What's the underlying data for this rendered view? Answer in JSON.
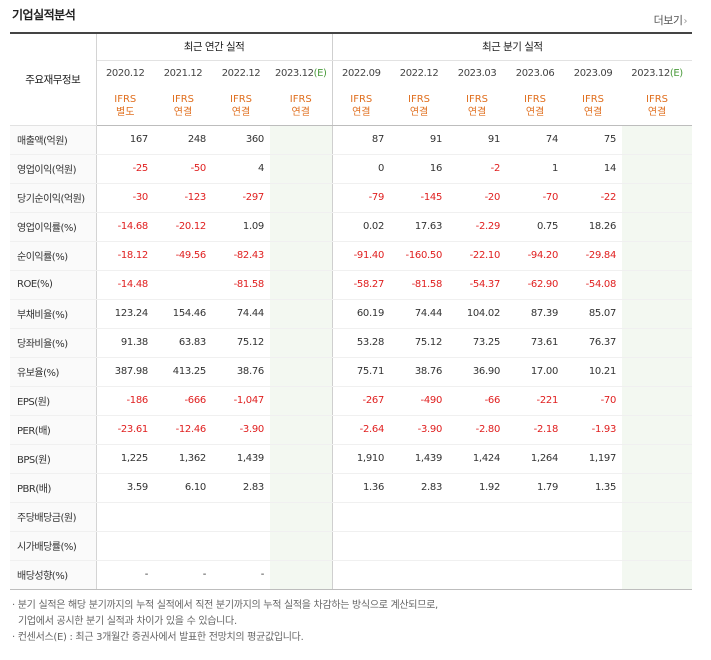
{
  "title": "기업실적분석",
  "more_label": "더보기",
  "header": {
    "row_header": "주요재무정보",
    "annual_group": "최근 연간 실적",
    "quarter_group": "최근 분기 실적",
    "periods": [
      {
        "label": "2020.12",
        "est": "",
        "std": "IFRS",
        "basis": "별도"
      },
      {
        "label": "2021.12",
        "est": "",
        "std": "IFRS",
        "basis": "연결"
      },
      {
        "label": "2022.12",
        "est": "",
        "std": "IFRS",
        "basis": "연결"
      },
      {
        "label": "2023.12",
        "est": "(E)",
        "std": "IFRS",
        "basis": "연결"
      },
      {
        "label": "2022.09",
        "est": "",
        "std": "IFRS",
        "basis": "연결"
      },
      {
        "label": "2022.12",
        "est": "",
        "std": "IFRS",
        "basis": "연결"
      },
      {
        "label": "2023.03",
        "est": "",
        "std": "IFRS",
        "basis": "연결"
      },
      {
        "label": "2023.06",
        "est": "",
        "std": "IFRS",
        "basis": "연결"
      },
      {
        "label": "2023.09",
        "est": "",
        "std": "IFRS",
        "basis": "연결"
      },
      {
        "label": "2023.12",
        "est": "(E)",
        "std": "IFRS",
        "basis": "연결"
      }
    ]
  },
  "rows": [
    {
      "label": "매출액(억원)",
      "values": [
        "167",
        "248",
        "360",
        "",
        "87",
        "91",
        "91",
        "74",
        "75",
        ""
      ]
    },
    {
      "label": "영업이익(억원)",
      "values": [
        "-25",
        "-50",
        "4",
        "",
        "0",
        "16",
        "-2",
        "1",
        "14",
        ""
      ]
    },
    {
      "label": "당기순이익(억원)",
      "values": [
        "-30",
        "-123",
        "-297",
        "",
        "-79",
        "-145",
        "-20",
        "-70",
        "-22",
        ""
      ]
    },
    {
      "label": "영업이익률(%)",
      "values": [
        "-14.68",
        "-20.12",
        "1.09",
        "",
        "0.02",
        "17.63",
        "-2.29",
        "0.75",
        "18.26",
        ""
      ]
    },
    {
      "label": "순이익률(%)",
      "values": [
        "-18.12",
        "-49.56",
        "-82.43",
        "",
        "-91.40",
        "-160.50",
        "-22.10",
        "-94.20",
        "-29.84",
        ""
      ]
    },
    {
      "label": "ROE(%)",
      "values": [
        "-14.48",
        "",
        "-81.58",
        "",
        "-58.27",
        "-81.58",
        "-54.37",
        "-62.90",
        "-54.08",
        ""
      ]
    },
    {
      "label": "부채비율(%)",
      "values": [
        "123.24",
        "154.46",
        "74.44",
        "",
        "60.19",
        "74.44",
        "104.02",
        "87.39",
        "85.07",
        ""
      ]
    },
    {
      "label": "당좌비율(%)",
      "values": [
        "91.38",
        "63.83",
        "75.12",
        "",
        "53.28",
        "75.12",
        "73.25",
        "73.61",
        "76.37",
        ""
      ]
    },
    {
      "label": "유보율(%)",
      "values": [
        "387.98",
        "413.25",
        "38.76",
        "",
        "75.71",
        "38.76",
        "36.90",
        "17.00",
        "10.21",
        ""
      ]
    },
    {
      "label": "EPS(원)",
      "values": [
        "-186",
        "-666",
        "-1,047",
        "",
        "-267",
        "-490",
        "-66",
        "-221",
        "-70",
        ""
      ]
    },
    {
      "label": "PER(배)",
      "values": [
        "-23.61",
        "-12.46",
        "-3.90",
        "",
        "-2.64",
        "-3.90",
        "-2.80",
        "-2.18",
        "-1.93",
        ""
      ]
    },
    {
      "label": "BPS(원)",
      "values": [
        "1,225",
        "1,362",
        "1,439",
        "",
        "1,910",
        "1,439",
        "1,424",
        "1,264",
        "1,197",
        ""
      ]
    },
    {
      "label": "PBR(배)",
      "values": [
        "3.59",
        "6.10",
        "2.83",
        "",
        "1.36",
        "2.83",
        "1.92",
        "1.79",
        "1.35",
        ""
      ]
    },
    {
      "label": "주당배당금(원)",
      "values": [
        "",
        "",
        "",
        "",
        "",
        "",
        "",
        "",
        "",
        ""
      ]
    },
    {
      "label": "시가배당률(%)",
      "values": [
        "",
        "",
        "",
        "",
        "",
        "",
        "",
        "",
        "",
        ""
      ]
    },
    {
      "label": "배당성향(%)",
      "values": [
        "-",
        "-",
        "-",
        "",
        "",
        "",
        "",
        "",
        "",
        ""
      ]
    }
  ],
  "notes": [
    "분기 실적은 해당 분기까지의 누적 실적에서 직전 분기까지의 누적 실적을 차감하는 방식으로 계산되므로,",
    "기업에서 공시한 분기 실적과 차이가 있을 수 있습니다.",
    "컨센서스(E) : 최근 3개월간 증권사에서 발표한 전망치의 평균값입니다."
  ],
  "colors": {
    "negative": "#e02020",
    "ifrs": "#e06f1f",
    "estimate_bg": "#f3f8f1",
    "estimate_mark": "#4a9b3c"
  }
}
